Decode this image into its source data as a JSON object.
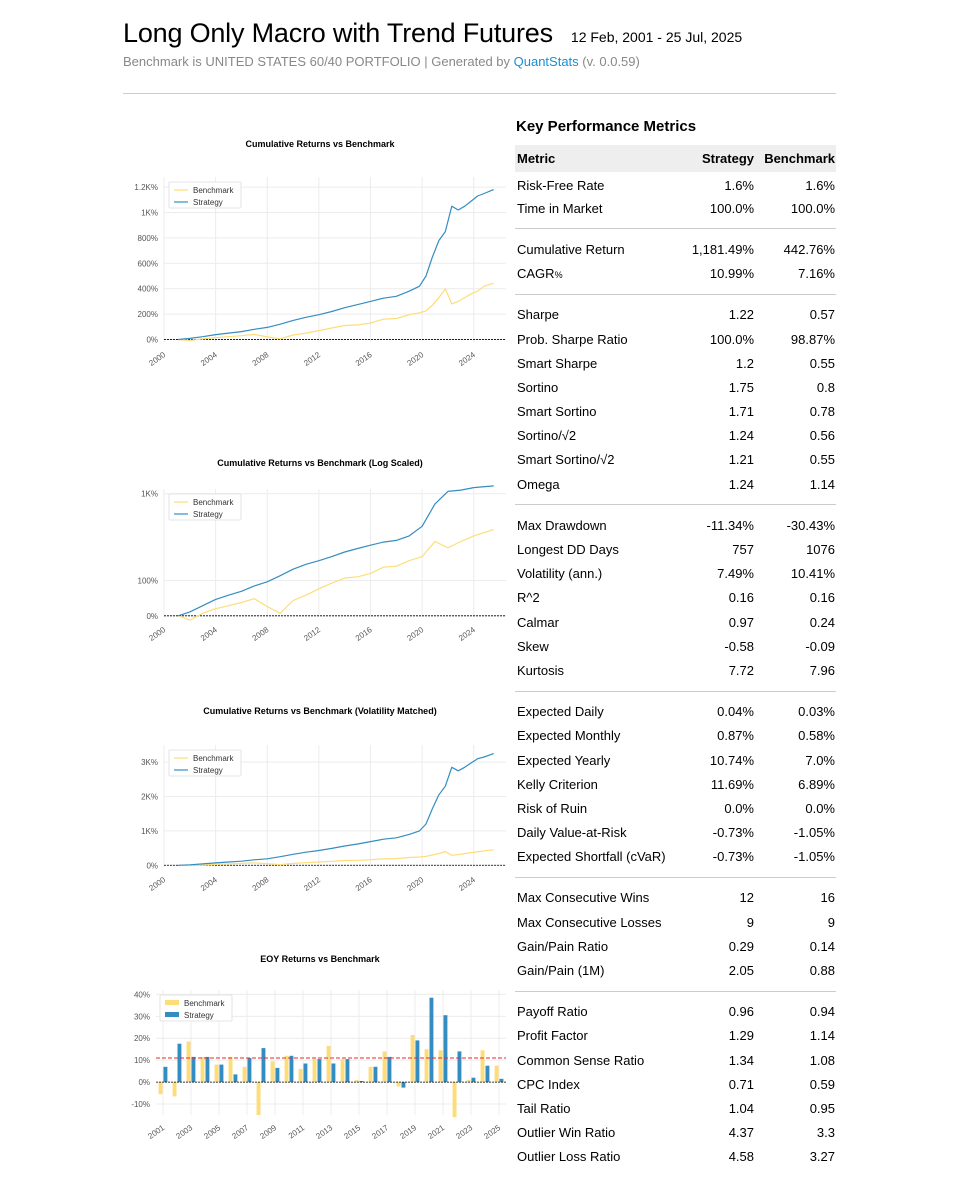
{
  "header": {
    "title": "Long Only Macro with Trend Futures",
    "date_range": "12 Feb, 2001 - 25 Jul, 2025",
    "subtitle_prefix": "Benchmark is UNITED STATES 60/40 PORTFOLIO | Generated by ",
    "subtitle_link": "QuantStats",
    "subtitle_suffix": " (v. 0.0.59)"
  },
  "colors": {
    "strategy": "#348dc1",
    "benchmark": "#fedd78",
    "zero_line": "#000000",
    "mean_line": "#e32b2b",
    "grid": "#ececec"
  },
  "chart_data": [
    {
      "type": "line",
      "title": "Cumulative Returns vs Benchmark",
      "x_ticks": [
        "2000",
        "2004",
        "2008",
        "2012",
        "2016",
        "2020",
        "2024"
      ],
      "y_ticks": [
        "0%",
        "200%",
        "400%",
        "600%",
        "800%",
        "1K%",
        "1.2K%"
      ],
      "ylim": [
        -20,
        1280
      ],
      "legend": [
        "Benchmark",
        "Strategy"
      ],
      "legend_position": "top-left",
      "grid": true,
      "x": [
        2001.1,
        2002,
        2003,
        2004,
        2005,
        2006,
        2007,
        2008,
        2009,
        2010,
        2011,
        2012,
        2013,
        2014,
        2015,
        2016,
        2017,
        2018,
        2019,
        2019.8,
        2020.3,
        2020.8,
        2021.3,
        2021.8,
        2022.3,
        2022.8,
        2023.3,
        2023.8,
        2024.3,
        2024.8,
        2025.55
      ],
      "series": [
        {
          "name": "Strategy",
          "values": [
            0,
            8,
            22,
            38,
            50,
            62,
            80,
            95,
            120,
            150,
            175,
            195,
            220,
            250,
            275,
            300,
            325,
            340,
            380,
            420,
            500,
            650,
            780,
            850,
            1050,
            1020,
            1050,
            1090,
            1130,
            1150,
            1181
          ]
        },
        {
          "name": "Benchmark",
          "values": [
            0,
            -8,
            5,
            15,
            22,
            30,
            40,
            20,
            5,
            35,
            50,
            70,
            90,
            110,
            115,
            130,
            160,
            165,
            195,
            210,
            225,
            270,
            330,
            400,
            280,
            300,
            330,
            360,
            380,
            420,
            443
          ]
        }
      ]
    },
    {
      "type": "line",
      "title": "Cumulative Returns vs Benchmark (Log Scaled)",
      "x_ticks": [
        "2000",
        "2004",
        "2008",
        "2012",
        "2016",
        "2020",
        "2024"
      ],
      "y_ticks": [
        "0%",
        "100%",
        "1K%"
      ],
      "yscale": "log",
      "legend": [
        "Benchmark",
        "Strategy"
      ],
      "legend_position": "top-left",
      "grid": true,
      "x": [
        2001.1,
        2002,
        2003,
        2004,
        2005,
        2006,
        2007,
        2008,
        2009,
        2010,
        2011,
        2012,
        2013,
        2014,
        2015,
        2016,
        2017,
        2018,
        2019,
        2020,
        2021,
        2022,
        2023,
        2024,
        2025.55
      ],
      "series": [
        {
          "name": "Strategy",
          "values": [
            0,
            8,
            22,
            38,
            50,
            62,
            80,
            95,
            120,
            150,
            175,
            195,
            220,
            250,
            275,
            300,
            325,
            340,
            380,
            480,
            800,
            1050,
            1080,
            1140,
            1181
          ]
        },
        {
          "name": "Benchmark",
          "values": [
            0,
            -8,
            5,
            15,
            22,
            30,
            40,
            20,
            5,
            35,
            50,
            70,
            90,
            110,
            115,
            130,
            160,
            165,
            195,
            220,
            330,
            280,
            330,
            380,
            443
          ]
        }
      ]
    },
    {
      "type": "line",
      "title": "Cumulative Returns vs Benchmark (Volatility Matched)",
      "x_ticks": [
        "2000",
        "2004",
        "2008",
        "2012",
        "2016",
        "2020",
        "2024"
      ],
      "y_ticks": [
        "0%",
        "1K%",
        "2K%",
        "3K%"
      ],
      "ylim": [
        -50,
        3500
      ],
      "legend": [
        "Benchmark",
        "Strategy"
      ],
      "legend_position": "top-left",
      "grid": true,
      "x": [
        2001.1,
        2002,
        2003,
        2004,
        2005,
        2006,
        2007,
        2008,
        2009,
        2010,
        2011,
        2012,
        2013,
        2014,
        2015,
        2016,
        2017,
        2018,
        2019,
        2019.8,
        2020.3,
        2020.8,
        2021.3,
        2021.8,
        2022.3,
        2022.8,
        2023.3,
        2023.8,
        2024.3,
        2024.8,
        2025.55
      ],
      "series": [
        {
          "name": "Strategy",
          "values": [
            0,
            15,
            40,
            70,
            95,
            120,
            160,
            190,
            250,
            320,
            380,
            430,
            490,
            560,
            620,
            690,
            760,
            800,
            900,
            1000,
            1200,
            1650,
            2050,
            2300,
            2850,
            2750,
            2850,
            2980,
            3100,
            3150,
            3250
          ]
        },
        {
          "name": "Benchmark",
          "values": [
            0,
            -5,
            10,
            25,
            40,
            55,
            70,
            45,
            20,
            55,
            75,
            95,
            115,
            140,
            145,
            160,
            190,
            195,
            225,
            240,
            260,
            300,
            340,
            400,
            290,
            310,
            340,
            370,
            390,
            420,
            450
          ]
        }
      ]
    },
    {
      "type": "bar",
      "title": "EOY Returns  vs Benchmark",
      "x_ticks": [
        "2001",
        "2003",
        "2005",
        "2007",
        "2009",
        "2011",
        "2013",
        "2015",
        "2017",
        "2019",
        "2021",
        "2023",
        "2025"
      ],
      "y_ticks": [
        "-10%",
        "0%",
        "10%",
        "20%",
        "30%",
        "40%"
      ],
      "ylim": [
        -15,
        42
      ],
      "legend": [
        "Benchmark",
        "Strategy"
      ],
      "legend_position": "top-left",
      "mean_line": 11,
      "categories": [
        "2001",
        "2002",
        "2003",
        "2004",
        "2005",
        "2006",
        "2007",
        "2008",
        "2009",
        "2010",
        "2011",
        "2012",
        "2013",
        "2014",
        "2015",
        "2016",
        "2017",
        "2018",
        "2019",
        "2020",
        "2021",
        "2022",
        "2023",
        "2024",
        "2025"
      ],
      "series": [
        {
          "name": "Benchmark",
          "values": [
            -5.5,
            -6.5,
            18.5,
            11.5,
            8,
            11.5,
            7,
            -15,
            9.5,
            12,
            6,
            10.5,
            16.5,
            10.5,
            1,
            7,
            14,
            -2,
            21.5,
            15,
            14.5,
            -16,
            1,
            14.5,
            7.5
          ]
        },
        {
          "name": "Strategy",
          "values": [
            7,
            17.5,
            11.5,
            11.5,
            8,
            3.5,
            11,
            15.5,
            6.5,
            12,
            8.5,
            10.5,
            8.5,
            10.5,
            0.5,
            7,
            11.5,
            -2.5,
            19,
            38.5,
            30.5,
            14,
            2,
            7.5,
            1.5
          ]
        }
      ]
    }
  ],
  "metrics": {
    "title": "Key Performance Metrics",
    "headers": [
      "Metric",
      "Strategy",
      "Benchmark"
    ],
    "groups": [
      [
        [
          "Risk-Free Rate",
          "1.6%",
          "1.6%"
        ],
        [
          "Time in Market",
          "100.0%",
          "100.0%"
        ]
      ],
      [
        [
          "Cumulative Return",
          "1,181.49%",
          "442.76%"
        ],
        [
          "CAGR",
          "10.99%",
          "7.16%"
        ]
      ],
      [
        [
          "Sharpe",
          "1.22",
          "0.57"
        ],
        [
          "Prob. Sharpe Ratio",
          "100.0%",
          "98.87%"
        ],
        [
          "Smart Sharpe",
          "1.2",
          "0.55"
        ],
        [
          "Sortino",
          "1.75",
          "0.8"
        ],
        [
          "Smart Sortino",
          "1.71",
          "0.78"
        ],
        [
          "Sortino/√2",
          "1.24",
          "0.56"
        ],
        [
          "Smart Sortino/√2",
          "1.21",
          "0.55"
        ],
        [
          "Omega",
          "1.24",
          "1.14"
        ]
      ],
      [
        [
          "Max Drawdown",
          "-11.34%",
          "-30.43%"
        ],
        [
          "Longest DD Days",
          "757",
          "1076"
        ],
        [
          "Volatility (ann.)",
          "7.49%",
          "10.41%"
        ],
        [
          "R^2",
          "0.16",
          "0.16"
        ],
        [
          "Calmar",
          "0.97",
          "0.24"
        ],
        [
          "Skew",
          "-0.58",
          "-0.09"
        ],
        [
          "Kurtosis",
          "7.72",
          "7.96"
        ]
      ],
      [
        [
          "Expected Daily",
          "0.04%",
          "0.03%"
        ],
        [
          "Expected Monthly",
          "0.87%",
          "0.58%"
        ],
        [
          "Expected Yearly",
          "10.74%",
          "7.0%"
        ],
        [
          "Kelly Criterion",
          "11.69%",
          "6.89%"
        ],
        [
          "Risk of Ruin",
          "0.0%",
          "0.0%"
        ],
        [
          "Daily Value-at-Risk",
          "-0.73%",
          "-1.05%"
        ],
        [
          "Expected Shortfall (cVaR)",
          "-0.73%",
          "-1.05%"
        ]
      ],
      [
        [
          "Max Consecutive Wins",
          "12",
          "16"
        ],
        [
          "Max Consecutive Losses",
          "9",
          "9"
        ],
        [
          "Gain/Pain Ratio",
          "0.29",
          "0.14"
        ],
        [
          "Gain/Pain (1M)",
          "2.05",
          "0.88"
        ]
      ],
      [
        [
          "Payoff Ratio",
          "0.96",
          "0.94"
        ],
        [
          "Profit Factor",
          "1.29",
          "1.14"
        ],
        [
          "Common Sense Ratio",
          "1.34",
          "1.08"
        ],
        [
          "CPC Index",
          "0.71",
          "0.59"
        ],
        [
          "Tail Ratio",
          "1.04",
          "0.95"
        ],
        [
          "Outlier Win Ratio",
          "4.37",
          "3.3"
        ],
        [
          "Outlier Loss Ratio",
          "4.58",
          "3.27"
        ]
      ]
    ],
    "cagr_suffix": "%"
  }
}
